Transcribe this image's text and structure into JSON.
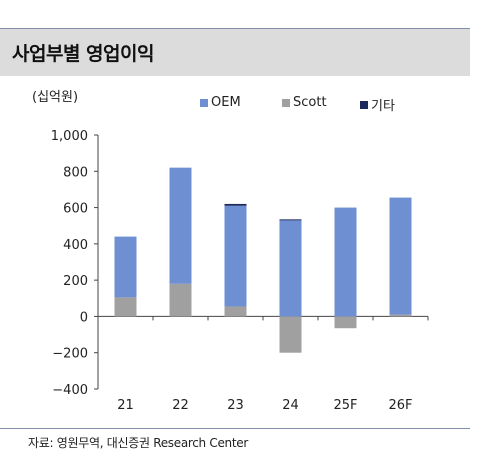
{
  "header": {
    "title": "사업부별 영업이익"
  },
  "unit_label": "(십억원)",
  "source": "자료: 영원무역, 대신증권 Research Center",
  "chart_data": {
    "type": "bar",
    "stacked": true,
    "categories": [
      "21",
      "22",
      "23",
      "24",
      "25F",
      "26F"
    ],
    "series": [
      {
        "name": "OEM",
        "color": "#6f8fd3",
        "values": [
          335,
          640,
          555,
          530,
          600,
          645
        ]
      },
      {
        "name": "Scott",
        "color": "#a0a0a0",
        "values": [
          105,
          180,
          55,
          -200,
          -65,
          10
        ]
      },
      {
        "name": "기타",
        "color": "#1b2a5a",
        "values": [
          0,
          0,
          10,
          5,
          0,
          0
        ]
      }
    ],
    "ylim": [
      -400,
      1000
    ],
    "yticks": [
      1000,
      800,
      600,
      400,
      200,
      0,
      -200,
      -400
    ],
    "ytick_labels": [
      "1,000",
      "800",
      "600",
      "400",
      "200",
      "0",
      "−200",
      "−400"
    ],
    "legend_position": "top"
  }
}
